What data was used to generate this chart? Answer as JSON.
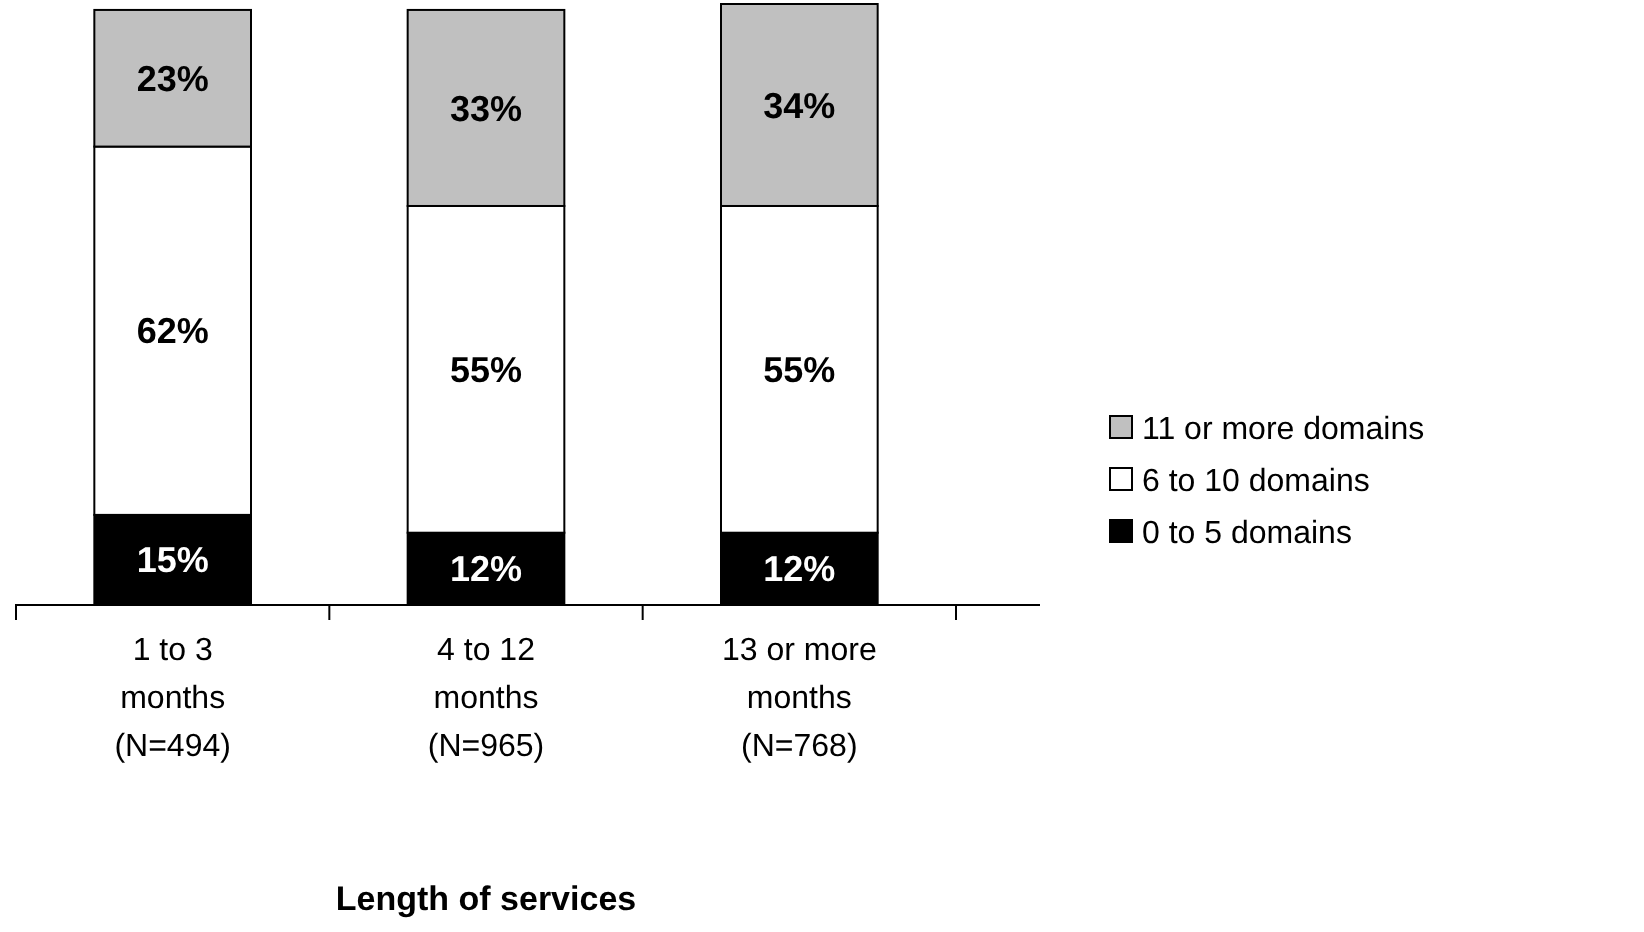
{
  "chart_data": {
    "type": "bar",
    "stacked": true,
    "xlabel": "Length of services",
    "categories": [
      "1 to 3\nmonths\n(N=494)",
      "4 to 12\nmonths\n(N=965)",
      "13 or more\nmonths\n(N=768)"
    ],
    "series": [
      {
        "name": "0 to 5 domains",
        "color": "#000000",
        "values": [
          15,
          12,
          12
        ],
        "value_labels": [
          "15%",
          "12%",
          "12%"
        ]
      },
      {
        "name": "6 to 10 domains",
        "color": "#ffffff",
        "values": [
          62,
          55,
          55
        ],
        "value_labels": [
          "62%",
          "55%",
          "55%"
        ]
      },
      {
        "name": "11 or more domains",
        "color": "#c0c0c0",
        "values": [
          23,
          33,
          34
        ],
        "value_labels": [
          "23%",
          "33%",
          "34%"
        ]
      }
    ],
    "legend": "right",
    "grid": false
  }
}
